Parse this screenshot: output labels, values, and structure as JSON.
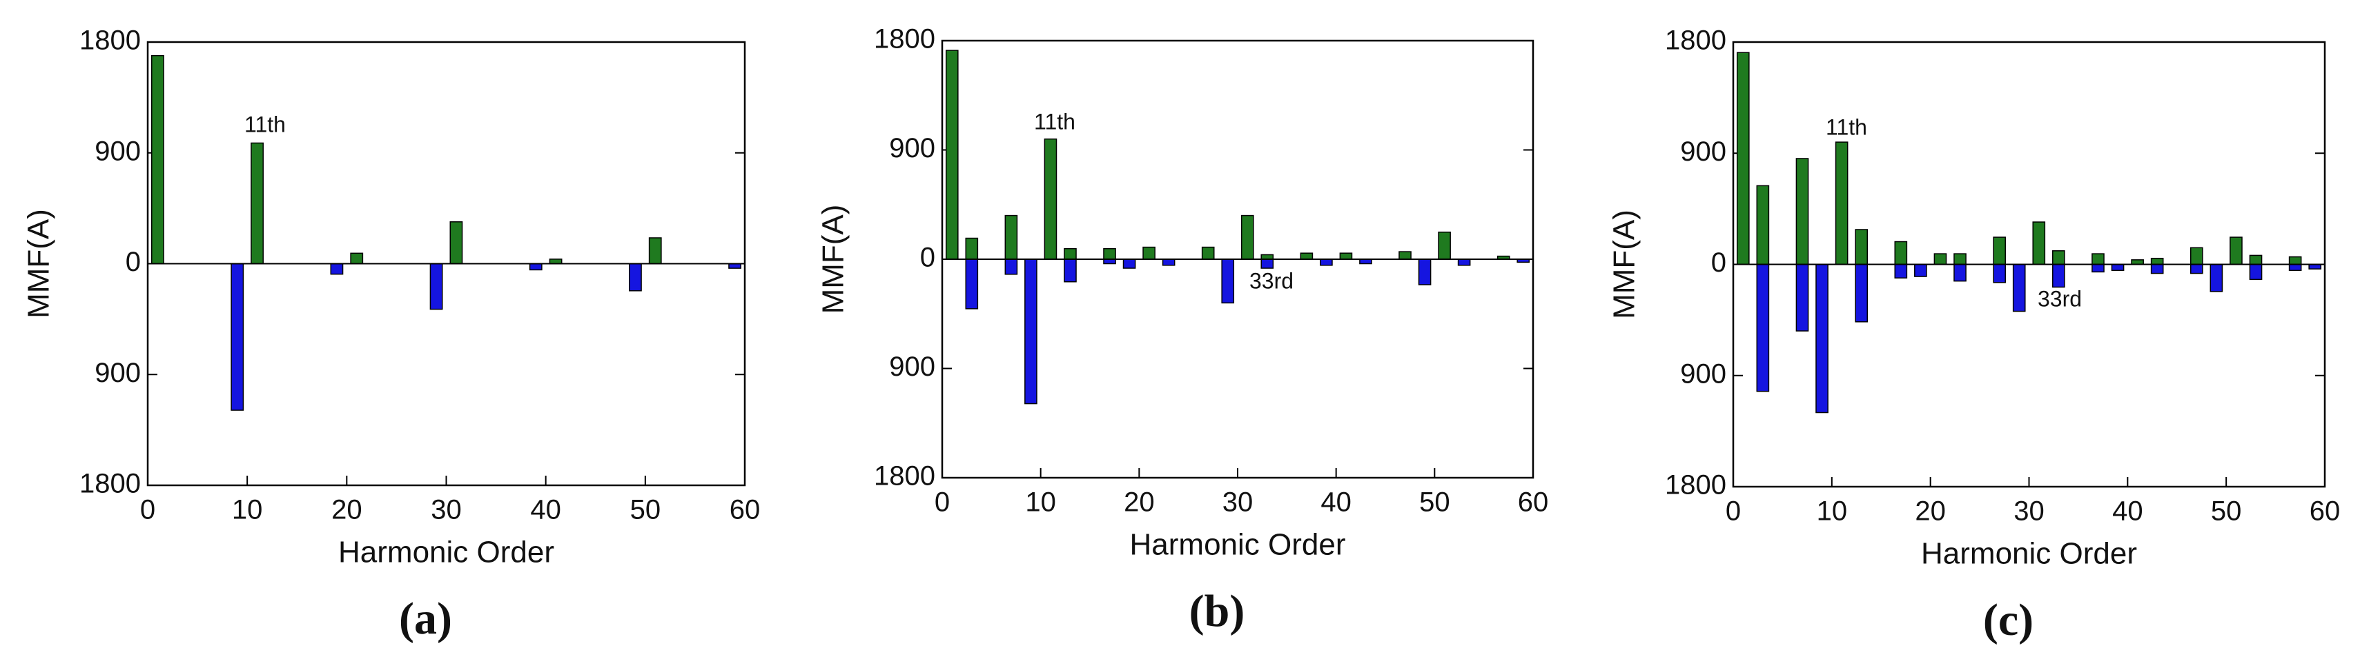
{
  "chart_data": [
    {
      "type": "bar",
      "xlabel": "Harmonic Order",
      "ylabel": "MMF(A)",
      "caption": "(a)",
      "annotations": [
        {
          "text": "11th"
        }
      ],
      "xlim": [
        0,
        60
      ],
      "xticks": [
        0,
        10,
        20,
        30,
        40,
        50,
        60
      ],
      "ylim": [
        -1800,
        1800
      ],
      "yticks": [
        {
          "value": -1800,
          "label": "1800"
        },
        {
          "value": -900,
          "label": "900"
        },
        0,
        900,
        1800
      ],
      "series": [
        {
          "color": "#1f7a1f",
          "x": [
            1,
            11,
            21,
            31,
            41,
            51
          ],
          "values": [
            1690,
            980,
            85,
            340,
            37,
            210
          ]
        },
        {
          "color": "#1515e0",
          "x": [
            9,
            19,
            29,
            39,
            49,
            59
          ],
          "values": [
            -1190,
            -85,
            -370,
            -50,
            -220,
            -37
          ]
        }
      ]
    },
    {
      "type": "bar",
      "xlabel": "Harmonic Order",
      "ylabel": "MMF(A)",
      "caption": "(b)",
      "annotations": [
        {
          "text": "11th"
        },
        {
          "text": "33rd"
        }
      ],
      "xlim": [
        0,
        60
      ],
      "xticks": [
        0,
        10,
        20,
        30,
        40,
        50,
        60
      ],
      "ylim": [
        -1800,
        1800
      ],
      "yticks": [
        {
          "value": -1800,
          "label": "1800"
        },
        {
          "value": -900,
          "label": "900"
        },
        0,
        900,
        1800
      ],
      "series": [
        {
          "color": "#1f7a1f",
          "x": [
            1,
            3,
            7,
            11,
            13,
            17,
            21,
            27,
            31,
            33,
            37,
            41,
            47,
            51,
            57
          ],
          "values": [
            1720,
            173,
            360,
            990,
            87,
            87,
            99,
            99,
            360,
            37,
            50,
            50,
            62,
            223,
            25
          ]
        },
        {
          "color": "#1515e0",
          "x": [
            3,
            7,
            9,
            13,
            17,
            19,
            23,
            29,
            33,
            39,
            43,
            49,
            53,
            59
          ],
          "values": [
            -408,
            -124,
            -1190,
            -186,
            -37,
            -74,
            -50,
            -360,
            -74,
            -50,
            -37,
            -210,
            -50,
            -25
          ]
        }
      ]
    },
    {
      "type": "bar",
      "xlabel": "Harmonic Order",
      "ylabel": "MMF(A)",
      "caption": "(c)",
      "annotations": [
        {
          "text": "11th"
        },
        {
          "text": "33rd"
        }
      ],
      "xlim": [
        0,
        60
      ],
      "xticks": [
        0,
        10,
        20,
        30,
        40,
        50,
        60
      ],
      "ylim": [
        -1800,
        1800
      ],
      "yticks": [
        {
          "value": -1800,
          "label": "1800"
        },
        {
          "value": -900,
          "label": "900"
        },
        0,
        900,
        1800
      ],
      "series": [
        {
          "color": "#1f7a1f",
          "x": [
            1,
            3,
            7,
            11,
            13,
            17,
            21,
            23,
            27,
            31,
            33,
            37,
            41,
            43,
            47,
            51,
            53,
            57
          ],
          "values": [
            1715,
            637,
            857,
            990,
            282,
            184,
            86,
            86,
            220,
            343,
            110,
            86,
            37,
            49,
            135,
            220,
            73,
            61
          ]
        },
        {
          "color": "#1515e0",
          "x": [
            3,
            7,
            9,
            13,
            17,
            19,
            23,
            27,
            29,
            33,
            37,
            39,
            43,
            47,
            49,
            53,
            57,
            59
          ],
          "values": [
            -1028,
            -539,
            -1200,
            -465,
            -110,
            -98,
            -135,
            -147,
            -380,
            -184,
            -61,
            -49,
            -73,
            -73,
            -220,
            -122,
            -49,
            -37
          ]
        }
      ]
    }
  ]
}
